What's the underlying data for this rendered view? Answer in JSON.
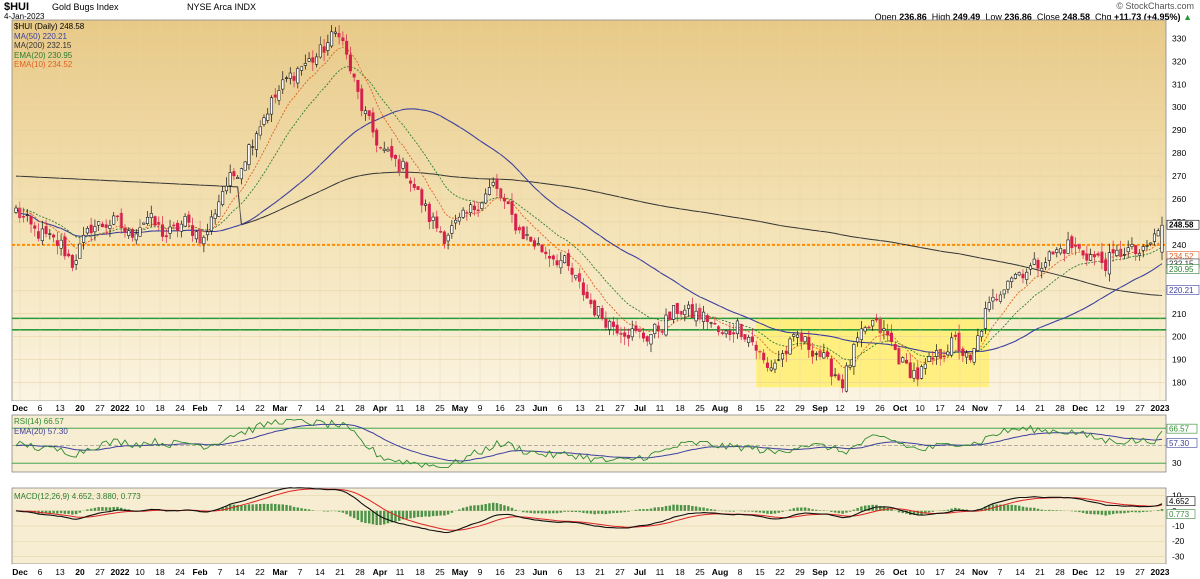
{
  "header": {
    "symbol": "$HUI",
    "name": "Gold Bugs Index",
    "exchange": "NYSE Arca  INDX",
    "date": "4-Jan-2023",
    "logo": "© StockCharts.com",
    "open_label": "Open",
    "open": "236.86",
    "high_label": "High",
    "high": "249.49",
    "low_label": "Low",
    "low": "236.86",
    "close_label": "Close",
    "close": "248.58",
    "chg_label": "Chg",
    "chg": "+11.73 (+4.95%)",
    "chg_arrow": "▲"
  },
  "legend": {
    "price": "$HUI (Daily) 248.58",
    "ma50": "MA(50) 220.21",
    "ma200": "MA(200) 232.15",
    "ema20": "EMA(20) 230.95",
    "ema10": "EMA(10) 234.52",
    "rsi": "RSI(14) 66.57",
    "rsi_ema": "EMA(20) 57.30",
    "macd": "MACD(12,26,9) 4.652, 3.880, 0.773"
  },
  "colors": {
    "ma50": "#3b3f9e",
    "ma200": "#333333",
    "ema20": "#2e7d32",
    "ema10": "#e06020",
    "up": "#111111",
    "down": "#d6204b",
    "support": "#2a9a3a",
    "resistance": "#ff8c00",
    "highlight": "#ffef70",
    "rsi": "#2e8b2e",
    "macd": "#111111",
    "signal": "#dd2222",
    "hist": "#3a8a3a"
  },
  "chart_data": {
    "type": "candlestick",
    "ylim": [
      172,
      338
    ],
    "y_ticks": [
      180,
      190,
      200,
      210,
      220,
      230,
      240,
      250,
      260,
      270,
      280,
      290,
      300,
      310,
      320,
      330
    ],
    "x_ticks": [
      "Dec",
      "6",
      "13",
      "20",
      "27",
      "2022",
      "10",
      "18",
      "24",
      "Feb",
      "7",
      "14",
      "22",
      "Mar",
      "7",
      "14",
      "21",
      "28",
      "Apr",
      "11",
      "18",
      "25",
      "May",
      "9",
      "16",
      "23",
      "Jun",
      "6",
      "13",
      "21",
      "27",
      "Jul",
      "11",
      "18",
      "25",
      "Aug",
      "8",
      "15",
      "22",
      "29",
      "Sep",
      "12",
      "19",
      "26",
      "Oct",
      "10",
      "17",
      "24",
      "Nov",
      "7",
      "14",
      "21",
      "28",
      "Dec",
      "12",
      "19",
      "27",
      "2023"
    ],
    "price_path": [
      [
        0,
        255
      ],
      [
        5,
        246
      ],
      [
        12,
        240
      ],
      [
        15,
        232
      ],
      [
        20,
        248
      ],
      [
        27,
        250
      ],
      [
        30,
        244
      ],
      [
        35,
        252
      ],
      [
        40,
        244
      ],
      [
        45,
        250
      ],
      [
        50,
        242
      ],
      [
        55,
        264
      ],
      [
        60,
        275
      ],
      [
        64,
        290
      ],
      [
        68,
        302
      ],
      [
        72,
        312
      ],
      [
        76,
        318
      ],
      [
        80,
        322
      ],
      [
        84,
        330
      ],
      [
        86,
        334
      ],
      [
        88,
        322
      ],
      [
        92,
        300
      ],
      [
        97,
        282
      ],
      [
        104,
        272
      ],
      [
        110,
        252
      ],
      [
        114,
        244
      ],
      [
        118,
        250
      ],
      [
        124,
        260
      ],
      [
        127,
        266
      ],
      [
        130,
        258
      ],
      [
        134,
        246
      ],
      [
        140,
        238
      ],
      [
        146,
        232
      ],
      [
        150,
        222
      ],
      [
        154,
        212
      ],
      [
        158,
        206
      ],
      [
        163,
        202
      ],
      [
        168,
        200
      ],
      [
        172,
        205
      ],
      [
        176,
        212
      ],
      [
        180,
        210
      ],
      [
        184,
        208
      ],
      [
        188,
        200
      ],
      [
        192,
        205
      ],
      [
        196,
        198
      ],
      [
        200,
        186
      ],
      [
        204,
        192
      ],
      [
        208,
        200
      ],
      [
        214,
        192
      ],
      [
        220,
        180
      ],
      [
        224,
        198
      ],
      [
        228,
        206
      ],
      [
        232,
        200
      ],
      [
        236,
        188
      ],
      [
        240,
        183
      ],
      [
        244,
        190
      ],
      [
        250,
        198
      ],
      [
        254,
        188
      ],
      [
        258,
        210
      ],
      [
        264,
        226
      ],
      [
        270,
        230
      ],
      [
        276,
        236
      ],
      [
        280,
        240
      ],
      [
        285,
        236
      ],
      [
        290,
        232
      ],
      [
        295,
        238
      ],
      [
        300,
        236
      ],
      [
        304,
        246
      ]
    ],
    "resistance": 240,
    "support_lines": [
      208,
      203
    ],
    "highlight_box": {
      "x0": 197,
      "x1": 259,
      "y0": 178,
      "y1": 208
    },
    "ma50_last": 220.21,
    "ma200_last": 232.15,
    "ema20_last": 230.95,
    "ema10_last": 234.52,
    "rsi_ylim": [
      20,
      85
    ],
    "rsi_levels": [
      70,
      30
    ],
    "rsi_last": 66.57,
    "rsi_ema_last": 57.3,
    "macd_ylim": [
      -35,
      15
    ],
    "macd_ticks": [
      10,
      0,
      -10,
      -20,
      -30
    ],
    "macd_last": 4.652,
    "signal_last": 3.88,
    "hist_last": 0.773,
    "price_labels": [
      "248.58",
      "234.52",
      "232.15",
      "230.95",
      "220.21"
    ],
    "rsi_labels": [
      "66.57",
      "57.30"
    ],
    "macd_labels": [
      "4.652",
      "0.773"
    ]
  }
}
